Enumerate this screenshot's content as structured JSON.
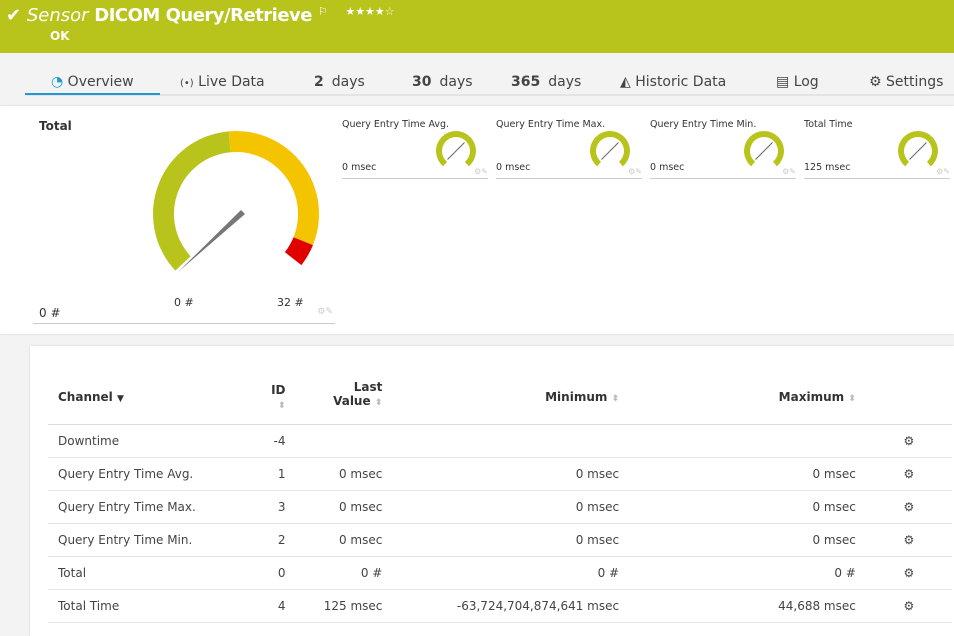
{
  "header": {
    "prefix": "Sensor",
    "title": "DICOM Query/Retrieve",
    "status": "OK",
    "stars": "★★★★☆",
    "color": "#b8c41c"
  },
  "tabs": [
    {
      "label": "Overview",
      "icon": "gauge-icon"
    },
    {
      "label": "Live Data",
      "icon": "broadcast-icon"
    },
    {
      "num": "2",
      "label": "days"
    },
    {
      "num": "30",
      "label": "days"
    },
    {
      "num": "365",
      "label": "days"
    },
    {
      "label": "Historic Data",
      "icon": "chart-icon"
    },
    {
      "label": "Log",
      "icon": "log-icon"
    },
    {
      "label": "Settings",
      "icon": "gear-icon"
    }
  ],
  "main_gauge": {
    "title": "Total",
    "value": "0 #",
    "min_label": "0 #",
    "max_label": "32 #",
    "colors": {
      "ok": "#b8c41c",
      "warning": "#f5c400",
      "error": "#e00000"
    }
  },
  "small_gauges": [
    {
      "title": "Query Entry Time Avg.",
      "value": "0 msec"
    },
    {
      "title": "Query Entry Time Max.",
      "value": "0 msec"
    },
    {
      "title": "Query Entry Time Min.",
      "value": "0 msec"
    },
    {
      "title": "Total Time",
      "value": "125 msec"
    }
  ],
  "table": {
    "headers": {
      "channel": "Channel",
      "id": "ID",
      "last1": "Last",
      "last2": "Value",
      "minimum": "Minimum",
      "maximum": "Maximum"
    },
    "rows": [
      {
        "channel": "Downtime",
        "id": "-4",
        "last": "",
        "min": "",
        "max": ""
      },
      {
        "channel": "Query Entry Time Avg.",
        "id": "1",
        "last": "0 msec",
        "min": "0 msec",
        "max": "0 msec"
      },
      {
        "channel": "Query Entry Time Max.",
        "id": "3",
        "last": "0 msec",
        "min": "0 msec",
        "max": "0 msec"
      },
      {
        "channel": "Query Entry Time Min.",
        "id": "2",
        "last": "0 msec",
        "min": "0 msec",
        "max": "0 msec"
      },
      {
        "channel": "Total",
        "id": "0",
        "last": "0 #",
        "min": "0 #",
        "max": "0 #"
      },
      {
        "channel": "Total Time",
        "id": "4",
        "last": "125 msec",
        "min": "-63,724,704,874,641 msec",
        "max": "44,688 msec"
      }
    ]
  }
}
